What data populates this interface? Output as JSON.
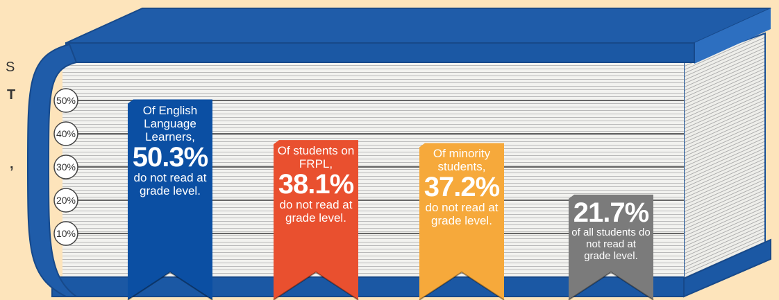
{
  "chart_data": {
    "type": "bar",
    "side_text": [
      "S",
      "T",
      ","
    ],
    "values": [
      50.3,
      38.1,
      37.2,
      21.7
    ],
    "value_labels": [
      "50.3%",
      "38.1%",
      "37.2%",
      "21.7%"
    ],
    "text_above": [
      "Of English Language Learners,",
      "Of students on FRPL,",
      "Of minority students,",
      null
    ],
    "text_below": [
      "do not read at grade level.",
      "do not read at grade level.",
      "do not read at grade level.",
      "of all students do not read at grade level."
    ],
    "colors": [
      "#0b4fa3",
      "#e9502f",
      "#f6a93b",
      "#7b7b7b"
    ],
    "ylim": [
      0,
      50
    ],
    "yticks": [
      {
        "value": 10,
        "label": "10%"
      },
      {
        "value": 20,
        "label": "20%"
      },
      {
        "value": 30,
        "label": "30%"
      },
      {
        "value": 40,
        "label": "40%"
      },
      {
        "value": 50,
        "label": "50%"
      }
    ],
    "grid": true
  }
}
